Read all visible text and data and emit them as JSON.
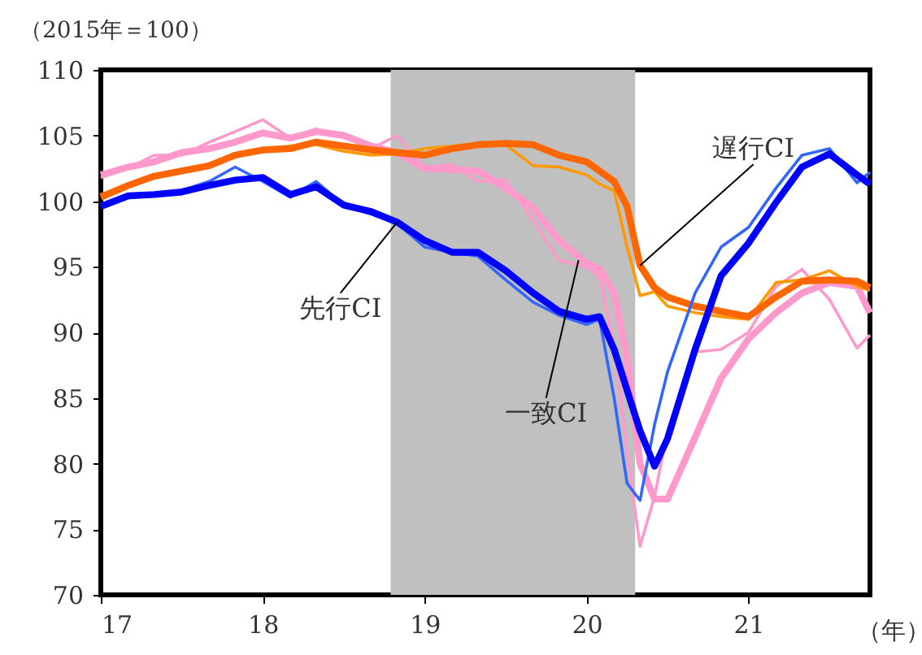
{
  "chart_data": {
    "type": "line",
    "ylabel": "（2015年＝100）",
    "xlabel": "（年）",
    "x": [
      17.0,
      17.17,
      17.33,
      17.5,
      17.67,
      17.83,
      18.0,
      18.17,
      18.33,
      18.5,
      18.67,
      18.83,
      19.0,
      19.17,
      19.33,
      19.5,
      19.67,
      19.83,
      20.0,
      20.08,
      20.17,
      20.25,
      20.33,
      20.42,
      20.5,
      20.67,
      20.83,
      21.0,
      21.17,
      21.33,
      21.5,
      21.67,
      21.75
    ],
    "series": [
      {
        "color": "#ff99cc",
        "values": [
          101.8,
          102.5,
          103.5,
          103.5,
          104.5,
          105.3,
          106.2,
          104.8,
          105.5,
          105,
          104,
          105,
          102.5,
          102.8,
          101.5,
          101.6,
          98.5,
          95.5,
          95,
          94.2,
          89,
          81,
          73.7,
          77.5,
          82.5,
          88.5,
          88.7,
          90,
          93.5,
          94.8,
          92.5,
          88.8,
          89.8
        ]
      },
      {
        "color": "#ff99cc",
        "values": [
          102,
          102.6,
          103,
          103.7,
          104,
          104.5,
          105.2,
          104.8,
          105.3,
          105,
          104.2,
          103.7,
          102.5,
          102.4,
          102.3,
          101,
          99.5,
          97,
          95.3,
          94.8,
          93,
          88,
          80,
          77.3,
          77.3,
          82,
          86.5,
          89.5,
          91.5,
          93,
          93.8,
          93.5,
          91.5
        ]
      },
      {
        "color": "#ff9900",
        "values": [
          100.5,
          101.3,
          101.9,
          102.3,
          102.8,
          103.6,
          104,
          104.2,
          104.3,
          103.8,
          103.5,
          103.6,
          104,
          104.2,
          104.4,
          104.3,
          102.7,
          102.6,
          102,
          101.3,
          100.8,
          96.5,
          92.8,
          93.1,
          92,
          91.5,
          91.2,
          91,
          93.8,
          94,
          94.7,
          93.5,
          93.2
        ]
      },
      {
        "color": "#ff6600",
        "values": [
          100.3,
          101.2,
          101.9,
          102.3,
          102.7,
          103.5,
          103.9,
          104,
          104.5,
          104.2,
          103.9,
          103.7,
          103.5,
          104,
          104.3,
          104.4,
          104.3,
          103.5,
          103,
          102.3,
          101.5,
          99.6,
          95.1,
          93.4,
          92.7,
          92,
          91.6,
          91.2,
          92.7,
          93.9,
          94,
          93.9,
          93.4
        ]
      },
      {
        "color": "#3366ff",
        "values": [
          99.6,
          100.5,
          100.6,
          100.8,
          101.5,
          102.6,
          101.5,
          100.3,
          101.5,
          99.7,
          99,
          98.3,
          96.5,
          96.1,
          95.8,
          94,
          92.3,
          91.3,
          90.6,
          91,
          85,
          78.5,
          77.2,
          83,
          87,
          93,
          96.5,
          98,
          101,
          103.5,
          104,
          101.4,
          102.2
        ]
      },
      {
        "color": "#0000ff",
        "values": [
          99.6,
          100.4,
          100.5,
          100.7,
          101.2,
          101.6,
          101.8,
          100.5,
          101.1,
          99.7,
          99.2,
          98.4,
          97,
          96.1,
          96.1,
          94.7,
          93,
          91.6,
          91,
          91.2,
          88.7,
          85.6,
          82.5,
          79.8,
          81.9,
          88.7,
          94.3,
          96.8,
          99.9,
          102.6,
          103.6,
          102,
          101.3
        ]
      }
    ],
    "bands": [
      {
        "axis": "x",
        "from": 18.79,
        "to": 20.3,
        "color": "#c0c0c0"
      }
    ],
    "annotations": [
      {
        "text": "先行CI",
        "x": 18.83,
        "y": 98.4
      },
      {
        "text": "一致CI",
        "x": 19.95,
        "y": 95.5
      },
      {
        "text": "遅行CI",
        "x": 20.33,
        "y": 95.1
      }
    ],
    "xlim": [
      17,
      21.75
    ],
    "xticks": [
      17,
      18,
      19,
      20,
      21
    ],
    "ylim": [
      70,
      110
    ],
    "yticks": [
      70,
      75,
      80,
      85,
      90,
      95,
      100,
      105,
      110
    ],
    "grid": false,
    "legend": false,
    "marker": "none",
    "line_style": "solid"
  }
}
